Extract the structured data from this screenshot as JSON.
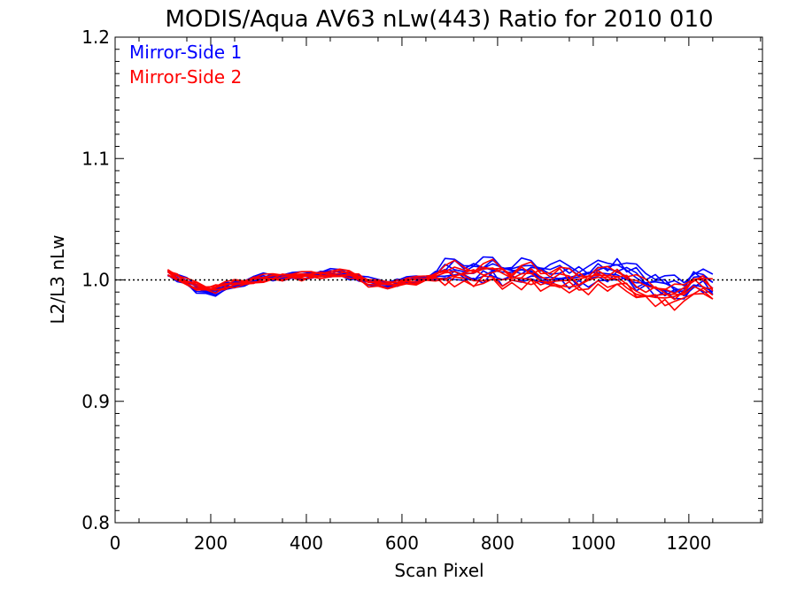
{
  "chart_data": {
    "type": "line",
    "title": "MODIS/Aqua AV63 nLw(443) Ratio for 2010 010",
    "xlabel": "Scan Pixel",
    "ylabel": "L2/L3 nLw",
    "xlim": [
      0,
      1354
    ],
    "ylim": [
      0.8,
      1.2
    ],
    "xticks": [
      "0",
      "200",
      "400",
      "600",
      "800",
      "1000",
      "1200"
    ],
    "yticks": [
      "0.8",
      "0.9",
      "1.0",
      "1.1",
      "1.2"
    ],
    "reference_line": 1.0,
    "legend": "top-left",
    "colors": {
      "mirror_side_1": "#0000ff",
      "mirror_side_2": "#ff0000",
      "reference": "#000000"
    },
    "x": [
      110,
      130,
      150,
      170,
      190,
      210,
      230,
      250,
      270,
      290,
      310,
      330,
      350,
      370,
      390,
      410,
      430,
      450,
      470,
      490,
      510,
      530,
      550,
      570,
      590,
      610,
      630,
      650,
      670,
      690,
      710,
      730,
      750,
      770,
      790,
      810,
      830,
      850,
      870,
      890,
      910,
      930,
      950,
      970,
      990,
      1010,
      1030,
      1050,
      1070,
      1090,
      1110,
      1130,
      1150,
      1170,
      1190,
      1210,
      1230,
      1250
    ],
    "series": [
      {
        "name": "Mirror-Side 1",
        "values": [
          1.006,
          1.002,
          0.998,
          0.993,
          0.99,
          0.99,
          0.994,
          0.996,
          0.998,
          1.0,
          1.002,
          1.002,
          1.003,
          1.003,
          1.003,
          1.004,
          1.005,
          1.006,
          1.005,
          1.004,
          1.002,
          0.999,
          0.997,
          0.997,
          0.998,
          0.999,
          1.0,
          1.001,
          1.004,
          1.007,
          1.008,
          1.008,
          1.006,
          1.008,
          1.01,
          1.006,
          1.004,
          1.007,
          1.008,
          1.004,
          1.006,
          1.005,
          1.004,
          1.003,
          1.004,
          1.005,
          1.007,
          1.009,
          1.006,
          1.002,
          0.999,
          0.997,
          0.995,
          0.993,
          0.992,
          1.001,
          1.0,
          0.994
        ]
      },
      {
        "name": "Mirror-Side 2",
        "values": [
          1.007,
          1.002,
          0.998,
          0.995,
          0.993,
          0.993,
          0.995,
          0.997,
          0.998,
          1.0,
          1.001,
          1.002,
          1.003,
          1.003,
          1.003,
          1.004,
          1.004,
          1.005,
          1.005,
          1.005,
          1.002,
          0.998,
          0.996,
          0.996,
          0.997,
          0.999,
          0.999,
          1.001,
          1.003,
          1.004,
          1.005,
          1.004,
          1.003,
          1.005,
          1.006,
          1.003,
          1.001,
          1.003,
          1.004,
          1.0,
          1.002,
          1.001,
          0.999,
          0.998,
          0.999,
          1.0,
          1.001,
          1.002,
          0.998,
          0.994,
          0.991,
          0.989,
          0.987,
          0.986,
          0.987,
          0.997,
          0.996,
          0.99
        ]
      }
    ]
  }
}
